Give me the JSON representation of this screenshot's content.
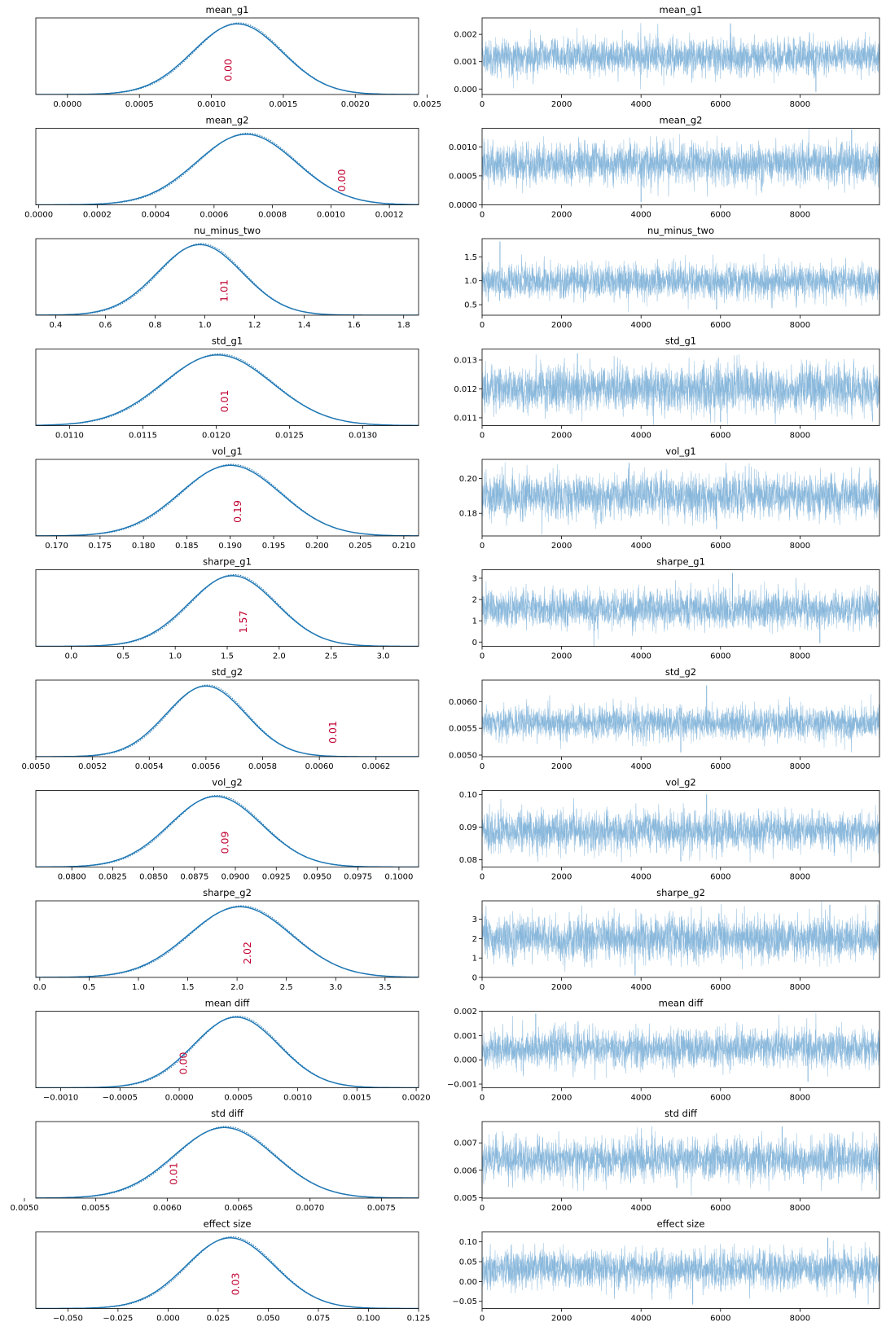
{
  "chart_data": [
    {
      "type": "area",
      "title": "mean_g1",
      "center": 0.00118,
      "sd": 0.00031,
      "xlim": [
        -0.00022,
        0.00244
      ],
      "xticks": [
        "0.0000",
        "0.0005",
        "0.0010",
        "0.0015",
        "0.0020",
        "0.0025"
      ],
      "xtick_values": [
        0,
        0.0005,
        0.001,
        0.0015,
        0.002,
        0.0025
      ],
      "annotation": "0.00",
      "annotation_x": 0.00112
    },
    {
      "type": "line",
      "title": "mean_g1",
      "n": 10000,
      "mean": 0.00118,
      "sd": 0.00031,
      "xlim": [
        0,
        10000
      ],
      "ylim": [
        -0.0002,
        0.0026
      ],
      "xticks": [
        "0",
        "2000",
        "4000",
        "6000",
        "8000"
      ],
      "xtick_values": [
        0,
        2000,
        4000,
        6000,
        8000
      ],
      "yticks": [
        "0.000",
        "0.001",
        "0.002"
      ],
      "ytick_values": [
        0,
        0.001,
        0.002
      ],
      "outliers": [
        [
          6250,
          0.0024
        ],
        [
          8400,
          -0.0001
        ]
      ]
    },
    {
      "type": "area",
      "title": "mean_g2",
      "center": 0.00071,
      "sd": 0.00017,
      "xlim": [
        -1e-05,
        0.0013
      ],
      "xticks": [
        "0.0000",
        "0.0002",
        "0.0004",
        "0.0006",
        "0.0008",
        "0.0010",
        "0.0012"
      ],
      "xtick_values": [
        0,
        0.0002,
        0.0004,
        0.0006,
        0.0008,
        0.001,
        0.0012
      ],
      "annotation": "0.00",
      "annotation_x": 0.00104
    },
    {
      "type": "line",
      "title": "mean_g2",
      "n": 10000,
      "mean": 0.00071,
      "sd": 0.00017,
      "xlim": [
        0,
        10000
      ],
      "ylim": [
        -0.0,
        0.00132
      ],
      "xticks": [
        "0",
        "2000",
        "4000",
        "6000",
        "8000"
      ],
      "xtick_values": [
        0,
        2000,
        4000,
        6000,
        8000
      ],
      "yticks": [
        "0.0000",
        "0.0005",
        "0.0010"
      ],
      "ytick_values": [
        0,
        0.0005,
        0.001
      ],
      "outliers": [
        [
          4000,
          5e-05
        ],
        [
          9300,
          0.0013
        ]
      ]
    },
    {
      "type": "area",
      "title": "nu_minus_two",
      "center": 0.98,
      "sd": 0.17,
      "xlim": [
        0.32,
        1.86
      ],
      "xticks": [
        "0.4",
        "0.6",
        "0.8",
        "1.0",
        "1.2",
        "1.4",
        "1.6",
        "1.8"
      ],
      "xtick_values": [
        0.4,
        0.6,
        0.8,
        1.0,
        1.2,
        1.4,
        1.6,
        1.8
      ],
      "annotation": "1.01",
      "annotation_x": 1.08
    },
    {
      "type": "line",
      "title": "nu_minus_two",
      "n": 10000,
      "mean": 0.98,
      "sd": 0.17,
      "xlim": [
        0,
        10000
      ],
      "ylim": [
        0.28,
        1.88
      ],
      "xticks": [
        "0",
        "2000",
        "4000",
        "6000",
        "8000"
      ],
      "xtick_values": [
        0,
        2000,
        4000,
        6000,
        8000
      ],
      "yticks": [
        "0.5",
        "1.0",
        "1.5"
      ],
      "ytick_values": [
        0.5,
        1.0,
        1.5
      ],
      "outliers": [
        [
          450,
          1.82
        ],
        [
          5900,
          0.4
        ]
      ]
    },
    {
      "type": "area",
      "title": "std_g1",
      "center": 0.01201,
      "sd": 0.00037,
      "xlim": [
        0.01077,
        0.01338
      ],
      "xticks": [
        "0.0110",
        "0.0115",
        "0.0120",
        "0.0125",
        "0.0130"
      ],
      "xtick_values": [
        0.011,
        0.0115,
        0.012,
        0.0125,
        0.013
      ],
      "annotation": "0.01",
      "annotation_x": 0.01206
    },
    {
      "type": "line",
      "title": "std_g1",
      "n": 10000,
      "mean": 0.01201,
      "sd": 0.00037,
      "xlim": [
        0,
        10000
      ],
      "ylim": [
        0.01073,
        0.01338
      ],
      "xticks": [
        "0",
        "2000",
        "4000",
        "6000",
        "8000"
      ],
      "xtick_values": [
        0,
        2000,
        4000,
        6000,
        8000
      ],
      "yticks": [
        "0.011",
        "0.012",
        "0.013"
      ],
      "ytick_values": [
        0.011,
        0.012,
        0.013
      ],
      "outliers": [
        [
          2400,
          0.01323
        ],
        [
          6000,
          0.01085
        ]
      ]
    },
    {
      "type": "area",
      "title": "vol_g1",
      "center": 0.19,
      "sd": 0.0058,
      "xlim": [
        0.1676,
        0.2117
      ],
      "xticks": [
        "0.170",
        "0.175",
        "0.180",
        "0.185",
        "0.190",
        "0.195",
        "0.200",
        "0.205",
        "0.210"
      ],
      "xtick_values": [
        0.17,
        0.175,
        0.18,
        0.185,
        0.19,
        0.195,
        0.2,
        0.205,
        0.21
      ],
      "annotation": "0.19",
      "annotation_x": 0.1909
    },
    {
      "type": "line",
      "title": "vol_g1",
      "n": 10000,
      "mean": 0.19,
      "sd": 0.0058,
      "xlim": [
        0,
        10000
      ],
      "ylim": [
        0.167,
        0.211
      ],
      "xticks": [
        "0",
        "2000",
        "4000",
        "6000",
        "8000"
      ],
      "xtick_values": [
        0,
        2000,
        4000,
        6000,
        8000
      ],
      "yticks": [
        "0.18",
        "0.20"
      ],
      "ytick_values": [
        0.18,
        0.2
      ],
      "outliers": [
        [
          3700,
          0.209
        ],
        [
          5900,
          0.171
        ]
      ]
    },
    {
      "type": "area",
      "title": "sharpe_g1",
      "center": 1.55,
      "sd": 0.42,
      "xlim": [
        -0.34,
        3.34
      ],
      "xticks": [
        "0.0",
        "0.5",
        "1.0",
        "1.5",
        "2.0",
        "2.5",
        "3.0"
      ],
      "xtick_values": [
        0,
        0.5,
        1.0,
        1.5,
        2.0,
        2.5,
        3.0
      ],
      "annotation": "1.57",
      "annotation_x": 1.66
    },
    {
      "type": "line",
      "title": "sharpe_g1",
      "n": 10000,
      "mean": 1.55,
      "sd": 0.42,
      "xlim": [
        0,
        10000
      ],
      "ylim": [
        -0.2,
        3.4
      ],
      "xticks": [
        "0",
        "2000",
        "4000",
        "6000",
        "8000"
      ],
      "xtick_values": [
        0,
        2000,
        4000,
        6000,
        8000
      ],
      "yticks": [
        "0",
        "1",
        "2",
        "3"
      ],
      "ytick_values": [
        0,
        1,
        2,
        3
      ],
      "outliers": [
        [
          6300,
          3.25
        ],
        [
          8500,
          -0.05
        ]
      ]
    },
    {
      "type": "area",
      "title": "std_g2",
      "center": 0.0056,
      "sd": 0.00014,
      "xlim": [
        0.005,
        0.00635
      ],
      "xticks": [
        "0.0050",
        "0.0052",
        "0.0054",
        "0.0056",
        "0.0058",
        "0.0060",
        "0.0062"
      ],
      "xtick_values": [
        0.005,
        0.0052,
        0.0054,
        0.0056,
        0.0058,
        0.006,
        0.0062
      ],
      "annotation": "0.01",
      "annotation_x": 0.00605
    },
    {
      "type": "line",
      "title": "std_g2",
      "n": 10000,
      "mean": 0.0056,
      "sd": 0.00014,
      "xlim": [
        0,
        10000
      ],
      "ylim": [
        0.00497,
        0.0064
      ],
      "xticks": [
        "0",
        "2000",
        "4000",
        "6000",
        "8000"
      ],
      "xtick_values": [
        0,
        2000,
        4000,
        6000,
        8000
      ],
      "yticks": [
        "0.0050",
        "0.0055",
        "0.0060"
      ],
      "ytick_values": [
        0.005,
        0.0055,
        0.006
      ],
      "outliers": [
        [
          5650,
          0.0063
        ],
        [
          5000,
          0.00505
        ]
      ]
    },
    {
      "type": "area",
      "title": "vol_g2",
      "center": 0.0888,
      "sd": 0.0028,
      "xlim": [
        0.0778,
        0.1012
      ],
      "xticks": [
        "0.0800",
        "0.0825",
        "0.0850",
        "0.0875",
        "0.0900",
        "0.0925",
        "0.0950",
        "0.0975",
        "0.1000"
      ],
      "xtick_values": [
        0.08,
        0.0825,
        0.085,
        0.0875,
        0.09,
        0.0925,
        0.095,
        0.0975,
        0.1
      ],
      "annotation": "0.09",
      "annotation_x": 0.0894
    },
    {
      "type": "line",
      "title": "vol_g2",
      "n": 10000,
      "mean": 0.0888,
      "sd": 0.0028,
      "xlim": [
        0,
        10000
      ],
      "ylim": [
        0.0778,
        0.1012
      ],
      "xticks": [
        "0",
        "2000",
        "4000",
        "6000",
        "8000"
      ],
      "xtick_values": [
        0,
        2000,
        4000,
        6000,
        8000
      ],
      "yticks": [
        "0.08",
        "0.09",
        "0.10"
      ],
      "ytick_values": [
        0.08,
        0.09,
        0.1
      ],
      "outliers": [
        [
          5650,
          0.1
        ],
        [
          5000,
          0.0795
        ]
      ]
    },
    {
      "type": "area",
      "title": "sharpe_g2",
      "center": 2.03,
      "sd": 0.52,
      "xlim": [
        -0.04,
        3.84
      ],
      "xticks": [
        "0.0",
        "0.5",
        "1.0",
        "1.5",
        "2.0",
        "2.5",
        "3.0",
        "3.5"
      ],
      "xtick_values": [
        0,
        0.5,
        1.0,
        1.5,
        2.0,
        2.5,
        3.0,
        3.5
      ],
      "annotation": "2.02",
      "annotation_x": 2.11
    },
    {
      "type": "line",
      "title": "sharpe_g2",
      "n": 10000,
      "mean": 2.03,
      "sd": 0.52,
      "xlim": [
        0,
        10000
      ],
      "ylim": [
        0,
        3.95
      ],
      "xticks": [
        "0",
        "2000",
        "4000",
        "6000",
        "8000"
      ],
      "xtick_values": [
        0,
        2000,
        4000,
        6000,
        8000
      ],
      "yticks": [
        "0",
        "1",
        "2",
        "3"
      ],
      "ytick_values": [
        0,
        1,
        2,
        3
      ],
      "outliers": [
        [
          8750,
          3.75
        ],
        [
          3850,
          0.1
        ]
      ]
    },
    {
      "type": "area",
      "title": "mean diff",
      "center": 0.00048,
      "sd": 0.00036,
      "xlim": [
        -0.00121,
        0.00202
      ],
      "xticks": [
        "−0.0010",
        "−0.0005",
        "0.0000",
        "0.0005",
        "0.0010",
        "0.0015",
        "0.0020"
      ],
      "xtick_values": [
        -0.001,
        -0.0005,
        0,
        0.0005,
        0.001,
        0.0015,
        0.002
      ],
      "annotation": "0.00",
      "annotation_x": 4e-05
    },
    {
      "type": "line",
      "title": "mean diff",
      "n": 10000,
      "mean": 0.00048,
      "sd": 0.00036,
      "xlim": [
        0,
        10000
      ],
      "ylim": [
        -0.00115,
        0.002
      ],
      "xticks": [
        "0",
        "2000",
        "4000",
        "6000",
        "8000"
      ],
      "xtick_values": [
        0,
        2000,
        4000,
        6000,
        8000
      ],
      "yticks": [
        "−0.001",
        "0.000",
        "0.001",
        "0.002"
      ],
      "ytick_values": [
        -0.001,
        0,
        0.001,
        0.002
      ],
      "outliers": [
        [
          1350,
          0.0019
        ],
        [
          8200,
          -0.0009
        ]
      ]
    },
    {
      "type": "area",
      "title": "std diff",
      "center": 0.0064,
      "sd": 0.00035,
      "xlim": [
        0.00508,
        0.00776
      ],
      "xticks": [
        "0.0050",
        "0.0055",
        "0.0060",
        "0.0065",
        "0.0070",
        "0.0075"
      ],
      "xtick_values": [
        0.005,
        0.0055,
        0.006,
        0.0065,
        0.007,
        0.0075
      ],
      "annotation": "0.01",
      "annotation_x": 0.00605
    },
    {
      "type": "line",
      "title": "std diff",
      "n": 10000,
      "mean": 0.0064,
      "sd": 0.00035,
      "xlim": [
        0,
        10000
      ],
      "ylim": [
        0.00498,
        0.00778
      ],
      "xticks": [
        "0",
        "2000",
        "4000",
        "6000",
        "8000"
      ],
      "xtick_values": [
        0,
        2000,
        4000,
        6000,
        8000
      ],
      "yticks": [
        "0.005",
        "0.006",
        "0.007"
      ],
      "ytick_values": [
        0.005,
        0.006,
        0.007
      ],
      "outliers": [
        [
          7550,
          0.0076
        ],
        [
          4900,
          0.00535
        ]
      ]
    },
    {
      "type": "area",
      "title": "effect size",
      "center": 0.031,
      "sd": 0.022,
      "xlim": [
        -0.066,
        0.125
      ],
      "xticks": [
        "−0.050",
        "−0.025",
        "0.000",
        "0.025",
        "0.050",
        "0.075",
        "0.100",
        "0.125"
      ],
      "xtick_values": [
        -0.05,
        -0.025,
        0,
        0.025,
        0.05,
        0.075,
        0.1,
        0.125
      ],
      "annotation": "0.03",
      "annotation_x": 0.034
    },
    {
      "type": "line",
      "title": "effect size",
      "n": 10000,
      "mean": 0.031,
      "sd": 0.022,
      "xlim": [
        0,
        10000
      ],
      "ylim": [
        -0.068,
        0.125
      ],
      "xticks": [
        "0",
        "2000",
        "4000",
        "6000",
        "8000"
      ],
      "xtick_values": [
        0,
        2000,
        4000,
        6000,
        8000
      ],
      "yticks": [
        "−0.05",
        "0.00",
        "0.05",
        "0.10"
      ],
      "ytick_values": [
        -0.05,
        0,
        0.05,
        0.1
      ],
      "outliers": [
        [
          8700,
          0.11
        ],
        [
          5300,
          -0.058
        ]
      ]
    }
  ],
  "colors": {
    "line": "#1f77b4",
    "trace": "#7fb2d8",
    "annotation": "#c00030",
    "axis": "#000000"
  }
}
